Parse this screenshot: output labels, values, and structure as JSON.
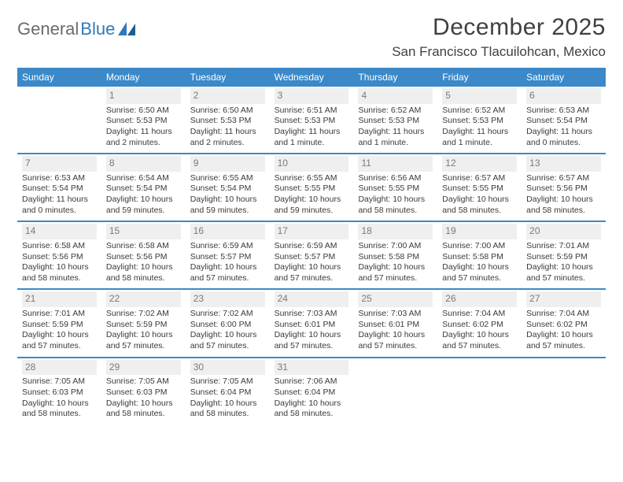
{
  "logo": {
    "text1": "General",
    "text2": "Blue"
  },
  "title": "December 2025",
  "location": "San Francisco Tlacuilohcan, Mexico",
  "colors": {
    "header_bg": "#3b89c9",
    "header_text": "#ffffff",
    "daynum_bg": "#efefef",
    "daynum_text": "#7a7a7a",
    "body_text": "#3a3a3a",
    "rule": "#3b89c9",
    "logo_gray": "#6b6b6b",
    "logo_blue": "#2f79ba"
  },
  "weekdays": [
    "Sunday",
    "Monday",
    "Tuesday",
    "Wednesday",
    "Thursday",
    "Friday",
    "Saturday"
  ],
  "weeks": [
    [
      {
        "num": "",
        "sunrise": "",
        "sunset": "",
        "daylight": ""
      },
      {
        "num": "1",
        "sunrise": "Sunrise: 6:50 AM",
        "sunset": "Sunset: 5:53 PM",
        "daylight": "Daylight: 11 hours and 2 minutes."
      },
      {
        "num": "2",
        "sunrise": "Sunrise: 6:50 AM",
        "sunset": "Sunset: 5:53 PM",
        "daylight": "Daylight: 11 hours and 2 minutes."
      },
      {
        "num": "3",
        "sunrise": "Sunrise: 6:51 AM",
        "sunset": "Sunset: 5:53 PM",
        "daylight": "Daylight: 11 hours and 1 minute."
      },
      {
        "num": "4",
        "sunrise": "Sunrise: 6:52 AM",
        "sunset": "Sunset: 5:53 PM",
        "daylight": "Daylight: 11 hours and 1 minute."
      },
      {
        "num": "5",
        "sunrise": "Sunrise: 6:52 AM",
        "sunset": "Sunset: 5:53 PM",
        "daylight": "Daylight: 11 hours and 1 minute."
      },
      {
        "num": "6",
        "sunrise": "Sunrise: 6:53 AM",
        "sunset": "Sunset: 5:54 PM",
        "daylight": "Daylight: 11 hours and 0 minutes."
      }
    ],
    [
      {
        "num": "7",
        "sunrise": "Sunrise: 6:53 AM",
        "sunset": "Sunset: 5:54 PM",
        "daylight": "Daylight: 11 hours and 0 minutes."
      },
      {
        "num": "8",
        "sunrise": "Sunrise: 6:54 AM",
        "sunset": "Sunset: 5:54 PM",
        "daylight": "Daylight: 10 hours and 59 minutes."
      },
      {
        "num": "9",
        "sunrise": "Sunrise: 6:55 AM",
        "sunset": "Sunset: 5:54 PM",
        "daylight": "Daylight: 10 hours and 59 minutes."
      },
      {
        "num": "10",
        "sunrise": "Sunrise: 6:55 AM",
        "sunset": "Sunset: 5:55 PM",
        "daylight": "Daylight: 10 hours and 59 minutes."
      },
      {
        "num": "11",
        "sunrise": "Sunrise: 6:56 AM",
        "sunset": "Sunset: 5:55 PM",
        "daylight": "Daylight: 10 hours and 58 minutes."
      },
      {
        "num": "12",
        "sunrise": "Sunrise: 6:57 AM",
        "sunset": "Sunset: 5:55 PM",
        "daylight": "Daylight: 10 hours and 58 minutes."
      },
      {
        "num": "13",
        "sunrise": "Sunrise: 6:57 AM",
        "sunset": "Sunset: 5:56 PM",
        "daylight": "Daylight: 10 hours and 58 minutes."
      }
    ],
    [
      {
        "num": "14",
        "sunrise": "Sunrise: 6:58 AM",
        "sunset": "Sunset: 5:56 PM",
        "daylight": "Daylight: 10 hours and 58 minutes."
      },
      {
        "num": "15",
        "sunrise": "Sunrise: 6:58 AM",
        "sunset": "Sunset: 5:56 PM",
        "daylight": "Daylight: 10 hours and 58 minutes."
      },
      {
        "num": "16",
        "sunrise": "Sunrise: 6:59 AM",
        "sunset": "Sunset: 5:57 PM",
        "daylight": "Daylight: 10 hours and 57 minutes."
      },
      {
        "num": "17",
        "sunrise": "Sunrise: 6:59 AM",
        "sunset": "Sunset: 5:57 PM",
        "daylight": "Daylight: 10 hours and 57 minutes."
      },
      {
        "num": "18",
        "sunrise": "Sunrise: 7:00 AM",
        "sunset": "Sunset: 5:58 PM",
        "daylight": "Daylight: 10 hours and 57 minutes."
      },
      {
        "num": "19",
        "sunrise": "Sunrise: 7:00 AM",
        "sunset": "Sunset: 5:58 PM",
        "daylight": "Daylight: 10 hours and 57 minutes."
      },
      {
        "num": "20",
        "sunrise": "Sunrise: 7:01 AM",
        "sunset": "Sunset: 5:59 PM",
        "daylight": "Daylight: 10 hours and 57 minutes."
      }
    ],
    [
      {
        "num": "21",
        "sunrise": "Sunrise: 7:01 AM",
        "sunset": "Sunset: 5:59 PM",
        "daylight": "Daylight: 10 hours and 57 minutes."
      },
      {
        "num": "22",
        "sunrise": "Sunrise: 7:02 AM",
        "sunset": "Sunset: 5:59 PM",
        "daylight": "Daylight: 10 hours and 57 minutes."
      },
      {
        "num": "23",
        "sunrise": "Sunrise: 7:02 AM",
        "sunset": "Sunset: 6:00 PM",
        "daylight": "Daylight: 10 hours and 57 minutes."
      },
      {
        "num": "24",
        "sunrise": "Sunrise: 7:03 AM",
        "sunset": "Sunset: 6:01 PM",
        "daylight": "Daylight: 10 hours and 57 minutes."
      },
      {
        "num": "25",
        "sunrise": "Sunrise: 7:03 AM",
        "sunset": "Sunset: 6:01 PM",
        "daylight": "Daylight: 10 hours and 57 minutes."
      },
      {
        "num": "26",
        "sunrise": "Sunrise: 7:04 AM",
        "sunset": "Sunset: 6:02 PM",
        "daylight": "Daylight: 10 hours and 57 minutes."
      },
      {
        "num": "27",
        "sunrise": "Sunrise: 7:04 AM",
        "sunset": "Sunset: 6:02 PM",
        "daylight": "Daylight: 10 hours and 57 minutes."
      }
    ],
    [
      {
        "num": "28",
        "sunrise": "Sunrise: 7:05 AM",
        "sunset": "Sunset: 6:03 PM",
        "daylight": "Daylight: 10 hours and 58 minutes."
      },
      {
        "num": "29",
        "sunrise": "Sunrise: 7:05 AM",
        "sunset": "Sunset: 6:03 PM",
        "daylight": "Daylight: 10 hours and 58 minutes."
      },
      {
        "num": "30",
        "sunrise": "Sunrise: 7:05 AM",
        "sunset": "Sunset: 6:04 PM",
        "daylight": "Daylight: 10 hours and 58 minutes."
      },
      {
        "num": "31",
        "sunrise": "Sunrise: 7:06 AM",
        "sunset": "Sunset: 6:04 PM",
        "daylight": "Daylight: 10 hours and 58 minutes."
      },
      {
        "num": "",
        "sunrise": "",
        "sunset": "",
        "daylight": ""
      },
      {
        "num": "",
        "sunrise": "",
        "sunset": "",
        "daylight": ""
      },
      {
        "num": "",
        "sunrise": "",
        "sunset": "",
        "daylight": ""
      }
    ]
  ]
}
